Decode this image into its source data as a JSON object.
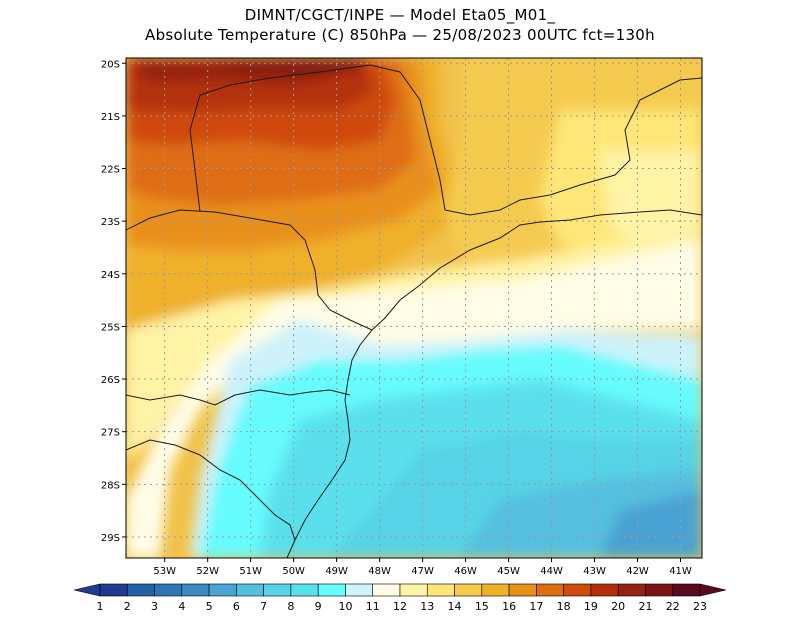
{
  "title": {
    "line1": "DIMNT/CGCT/INPE —  Model Eta05_M01_",
    "line2": "Absolute Temperature (C) 850hPa —  25/08/2023 00UTC fct=130h"
  },
  "map": {
    "lat_labels": [
      "20S",
      "21S",
      "22S",
      "23S",
      "24S",
      "25S",
      "26S",
      "27S",
      "28S",
      "29S"
    ],
    "lon_labels": [
      "53W",
      "52W",
      "51W",
      "50W",
      "49W",
      "48W",
      "47W",
      "46W",
      "45W",
      "44W",
      "43W",
      "42W",
      "41W"
    ],
    "lat_range": [
      -29.4,
      -19.9
    ],
    "lon_range": [
      -53.9,
      -40.5
    ]
  },
  "colorbar": {
    "labels": [
      "1",
      "2",
      "3",
      "4",
      "5",
      "6",
      "7",
      "8",
      "9",
      "10",
      "11",
      "12",
      "13",
      "14",
      "15",
      "16",
      "17",
      "18",
      "19",
      "20",
      "21",
      "22",
      "23"
    ],
    "colors": [
      "#1f3a93",
      "#1f3a93",
      "#2360a8",
      "#2c75b6",
      "#3a8ac4",
      "#4aa3d2",
      "#54bfdf",
      "#56d3e6",
      "#5ae0ed",
      "#66fbfd",
      "#cdf2fa",
      "#fffde6",
      "#fff3a6",
      "#ffe676",
      "#f5cb50",
      "#efb02a",
      "#e9901a",
      "#df6d12",
      "#cf4a0d",
      "#b4300c",
      "#962210",
      "#7b1414",
      "#5a0a1e",
      "#5a0a1e"
    ]
  }
}
